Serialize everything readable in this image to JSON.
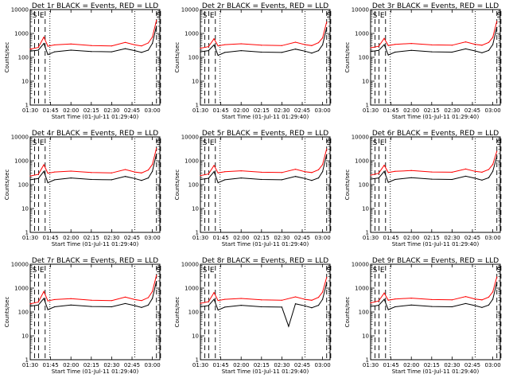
{
  "chart_data": [
    {
      "type": "line",
      "title": "Det 1r BLACK = Events, RED = LLD",
      "xlabel": "Start Time (01-Jul-11 01:29:40)",
      "ylabel": "Counts/sec",
      "yscale": "log",
      "ylim": [
        1,
        10000
      ],
      "x_ticks": [
        "01:30",
        "01:45",
        "02:00",
        "02:15",
        "02:30",
        "02:45",
        "03:00"
      ],
      "y_ticks": [
        "1",
        "10",
        "100",
        "1000",
        "10000"
      ],
      "markers": [
        {
          "label": "S",
          "dash": "dashed"
        },
        {
          "label": "E",
          "dash": "dashed"
        },
        {
          "label": "S",
          "dash": "dashed"
        }
      ],
      "series": [
        {
          "color": "#ff0000",
          "x": [
            "01:30",
            "01:36",
            "01:40",
            "01:43",
            "01:48",
            "02:00",
            "02:15",
            "02:30",
            "02:40",
            "02:47",
            "02:52",
            "02:57",
            "03:00",
            "03:03"
          ],
          "y": [
            220,
            260,
            700,
            290,
            330,
            360,
            310,
            300,
            420,
            330,
            300,
            400,
            700,
            3500
          ]
        },
        {
          "color": "#000000",
          "x": [
            "01:30",
            "01:36",
            "01:40",
            "01:43",
            "01:48",
            "02:00",
            "02:15",
            "02:30",
            "02:40",
            "02:47",
            "02:52",
            "02:57",
            "03:00",
            "03:03"
          ],
          "y": [
            180,
            200,
            380,
            130,
            170,
            200,
            175,
            170,
            230,
            190,
            160,
            200,
            380,
            2000
          ]
        }
      ]
    },
    {
      "type": "line",
      "title": "Det 2r BLACK = Events, RED = LLD",
      "xlabel": "Start Time (01-Jul-11 01:29:40)",
      "ylabel": "Counts/sec",
      "yscale": "log",
      "ylim": [
        1,
        10000
      ],
      "x_ticks": [
        "01:30",
        "01:45",
        "02:00",
        "02:15",
        "02:30",
        "02:45",
        "03:00"
      ],
      "y_ticks": [
        "1",
        "10",
        "100",
        "1000",
        "10000"
      ],
      "markers": [
        {
          "label": "S",
          "dash": "dashed"
        },
        {
          "label": "E",
          "dash": "dashed"
        },
        {
          "label": "S",
          "dash": "dashed"
        }
      ],
      "series": [
        {
          "color": "#ff0000",
          "x": [
            "01:30",
            "01:36",
            "01:40",
            "01:43",
            "01:48",
            "02:00",
            "02:15",
            "02:30",
            "02:40",
            "02:47",
            "02:52",
            "02:57",
            "03:00",
            "03:03"
          ],
          "y": [
            240,
            280,
            600,
            300,
            340,
            370,
            320,
            310,
            430,
            340,
            310,
            410,
            650,
            3000
          ]
        },
        {
          "color": "#000000",
          "x": [
            "01:30",
            "01:36",
            "01:40",
            "01:43",
            "01:48",
            "02:00",
            "02:15",
            "02:30",
            "02:40",
            "02:47",
            "02:52",
            "02:57",
            "03:00",
            "03:03"
          ],
          "y": [
            170,
            190,
            330,
            120,
            160,
            190,
            165,
            160,
            220,
            180,
            150,
            190,
            330,
            1700
          ]
        }
      ]
    },
    {
      "type": "line",
      "title": "Det 3r BLACK = Events, RED = LLD",
      "xlabel": "Start Time (01-Jul-11 01:29:40)",
      "ylabel": "Counts/sec",
      "yscale": "log",
      "ylim": [
        1,
        10000
      ],
      "x_ticks": [
        "01:30",
        "01:45",
        "02:00",
        "02:15",
        "02:30",
        "02:45",
        "03:00"
      ],
      "y_ticks": [
        "1",
        "10",
        "100",
        "1000",
        "10000"
      ],
      "markers": [
        {
          "label": "S",
          "dash": "dashed"
        },
        {
          "label": "E",
          "dash": "dashed"
        },
        {
          "label": "S",
          "dash": "dashed"
        }
      ],
      "series": [
        {
          "color": "#ff0000",
          "x": [
            "01:30",
            "01:36",
            "01:40",
            "01:43",
            "01:48",
            "02:00",
            "02:15",
            "02:30",
            "02:40",
            "02:47",
            "02:52",
            "02:57",
            "03:00",
            "03:03"
          ],
          "y": [
            250,
            290,
            620,
            310,
            350,
            380,
            330,
            320,
            440,
            350,
            320,
            420,
            680,
            3200
          ]
        },
        {
          "color": "#000000",
          "x": [
            "01:30",
            "01:36",
            "01:40",
            "01:43",
            "01:48",
            "02:00",
            "02:15",
            "02:30",
            "02:40",
            "02:47",
            "02:52",
            "02:57",
            "03:00",
            "03:03"
          ],
          "y": [
            175,
            195,
            340,
            125,
            165,
            195,
            170,
            165,
            225,
            185,
            155,
            195,
            340,
            1800
          ]
        }
      ]
    },
    {
      "type": "line",
      "title": "Det 4r BLACK = Events, RED = LLD",
      "xlabel": "Start Time (01-Jul-11 01:29:40)",
      "ylabel": "Counts/sec",
      "yscale": "log",
      "ylim": [
        1,
        10000
      ],
      "x_ticks": [
        "01:30",
        "01:45",
        "02:00",
        "02:15",
        "02:30",
        "02:45",
        "03:00"
      ],
      "y_ticks": [
        "1",
        "10",
        "100",
        "1000",
        "10000"
      ],
      "markers": [
        {
          "label": "S",
          "dash": "dashed"
        },
        {
          "label": "E",
          "dash": "dashed"
        },
        {
          "label": "S",
          "dash": "dashed"
        }
      ],
      "series": [
        {
          "color": "#ff0000",
          "x": [
            "01:30",
            "01:36",
            "01:40",
            "01:43",
            "01:48",
            "02:00",
            "02:15",
            "02:30",
            "02:40",
            "02:47",
            "02:52",
            "02:57",
            "03:00",
            "03:03"
          ],
          "y": [
            230,
            270,
            680,
            300,
            340,
            370,
            320,
            310,
            430,
            340,
            310,
            410,
            700,
            3300
          ]
        },
        {
          "color": "#000000",
          "x": [
            "01:30",
            "01:36",
            "01:40",
            "01:43",
            "01:48",
            "02:00",
            "02:15",
            "02:30",
            "02:40",
            "02:47",
            "02:52",
            "02:57",
            "03:00",
            "03:03"
          ],
          "y": [
            160,
            180,
            360,
            120,
            160,
            190,
            165,
            160,
            220,
            180,
            150,
            190,
            360,
            1900
          ]
        }
      ]
    },
    {
      "type": "line",
      "title": "Det 5r BLACK = Events, RED = LLD",
      "xlabel": "Start Time (01-Jul-11 01:29:40)",
      "ylabel": "Counts/sec",
      "yscale": "log",
      "ylim": [
        1,
        10000
      ],
      "x_ticks": [
        "01:30",
        "01:45",
        "02:00",
        "02:15",
        "02:30",
        "02:45",
        "03:00"
      ],
      "y_ticks": [
        "1",
        "10",
        "100",
        "1000",
        "10000"
      ],
      "markers": [
        {
          "label": "S",
          "dash": "dashed"
        },
        {
          "label": "E",
          "dash": "dashed"
        },
        {
          "label": "S",
          "dash": "dashed"
        }
      ],
      "series": [
        {
          "color": "#ff0000",
          "x": [
            "01:30",
            "01:36",
            "01:40",
            "01:43",
            "01:48",
            "02:00",
            "02:15",
            "02:30",
            "02:40",
            "02:47",
            "02:52",
            "02:57",
            "03:00",
            "03:03"
          ],
          "y": [
            240,
            280,
            640,
            310,
            350,
            380,
            330,
            320,
            440,
            350,
            320,
            420,
            690,
            3100
          ]
        },
        {
          "color": "#000000",
          "x": [
            "01:30",
            "01:36",
            "01:40",
            "01:43",
            "01:48",
            "02:00",
            "02:15",
            "02:30",
            "02:40",
            "02:47",
            "02:52",
            "02:57",
            "03:00",
            "03:03"
          ],
          "y": [
            165,
            185,
            350,
            120,
            160,
            190,
            165,
            160,
            220,
            180,
            150,
            190,
            350,
            1800
          ]
        }
      ]
    },
    {
      "type": "line",
      "title": "Det 6r BLACK = Events, RED = LLD",
      "xlabel": "Start Time (01-Jul-11 01:29:40)",
      "ylabel": "Counts/sec",
      "yscale": "log",
      "ylim": [
        1,
        10000
      ],
      "x_ticks": [
        "01:30",
        "01:45",
        "02:00",
        "02:15",
        "02:30",
        "02:45",
        "03:00"
      ],
      "y_ticks": [
        "1",
        "10",
        "100",
        "1000",
        "10000"
      ],
      "markers": [
        {
          "label": "S",
          "dash": "dashed"
        },
        {
          "label": "E",
          "dash": "dashed"
        },
        {
          "label": "S",
          "dash": "dashed"
        }
      ],
      "series": [
        {
          "color": "#ff0000",
          "x": [
            "01:30",
            "01:36",
            "01:40",
            "01:43",
            "01:48",
            "02:00",
            "02:15",
            "02:30",
            "02:40",
            "02:47",
            "02:52",
            "02:57",
            "03:00",
            "03:03"
          ],
          "y": [
            250,
            300,
            650,
            320,
            360,
            390,
            340,
            330,
            450,
            360,
            330,
            430,
            700,
            2500
          ]
        },
        {
          "color": "#000000",
          "x": [
            "01:30",
            "01:36",
            "01:40",
            "01:43",
            "01:48",
            "02:00",
            "02:15",
            "02:30",
            "02:40",
            "02:47",
            "02:52",
            "02:57",
            "03:00",
            "03:03"
          ],
          "y": [
            170,
            190,
            360,
            125,
            165,
            195,
            170,
            165,
            225,
            185,
            155,
            195,
            360,
            1500
          ]
        }
      ]
    },
    {
      "type": "line",
      "title": "Det 7r BLACK = Events, RED = LLD",
      "xlabel": "Start Time (01-Jul-11 01:29:40)",
      "ylabel": "Counts/sec",
      "yscale": "log",
      "ylim": [
        1,
        10000
      ],
      "x_ticks": [
        "01:30",
        "01:45",
        "02:00",
        "02:15",
        "02:30",
        "02:45",
        "03:00"
      ],
      "y_ticks": [
        "1",
        "10",
        "100",
        "1000",
        "10000"
      ],
      "markers": [
        {
          "label": "S",
          "dash": "dashed"
        },
        {
          "label": "E",
          "dash": "dashed"
        },
        {
          "label": "S",
          "dash": "dashed"
        }
      ],
      "series": [
        {
          "color": "#ff0000",
          "x": [
            "01:30",
            "01:36",
            "01:40",
            "01:43",
            "01:48",
            "02:00",
            "02:15",
            "02:30",
            "02:40",
            "02:47",
            "02:52",
            "02:57",
            "03:00",
            "03:03"
          ],
          "y": [
            220,
            260,
            720,
            290,
            330,
            360,
            310,
            300,
            420,
            330,
            300,
            400,
            720,
            3400
          ]
        },
        {
          "color": "#000000",
          "x": [
            "01:30",
            "01:36",
            "01:40",
            "01:43",
            "01:48",
            "02:00",
            "02:15",
            "02:30",
            "02:40",
            "02:47",
            "02:52",
            "02:57",
            "03:00",
            "03:03"
          ],
          "y": [
            175,
            195,
            370,
            125,
            165,
            195,
            170,
            165,
            225,
            185,
            155,
            195,
            370,
            1900
          ]
        }
      ]
    },
    {
      "type": "line",
      "title": "Det 8r BLACK = Events, RED = LLD",
      "xlabel": "Start Time (01-Jul-11 01:29:40)",
      "ylabel": "Counts/sec",
      "yscale": "log",
      "ylim": [
        1,
        10000
      ],
      "x_ticks": [
        "01:30",
        "01:45",
        "02:00",
        "02:15",
        "02:30",
        "02:45",
        "03:00"
      ],
      "y_ticks": [
        "1",
        "10",
        "100",
        "1000",
        "10000"
      ],
      "markers": [
        {
          "label": "S",
          "dash": "dashed"
        },
        {
          "label": "E",
          "dash": "dashed"
        },
        {
          "label": "S",
          "dash": "dashed"
        }
      ],
      "series": [
        {
          "color": "#ff0000",
          "x": [
            "01:30",
            "01:36",
            "01:40",
            "01:43",
            "01:48",
            "02:00",
            "02:15",
            "02:30",
            "02:40",
            "02:47",
            "02:52",
            "02:57",
            "03:00",
            "03:03"
          ],
          "y": [
            230,
            270,
            650,
            300,
            340,
            370,
            320,
            310,
            430,
            340,
            310,
            410,
            680,
            2800
          ]
        },
        {
          "color": "#000000",
          "x": [
            "01:30",
            "01:36",
            "01:40",
            "01:43",
            "01:48",
            "02:00",
            "02:15",
            "02:30",
            "02:35",
            "02:40",
            "02:47",
            "02:52",
            "02:57",
            "03:00",
            "03:03"
          ],
          "y": [
            165,
            185,
            340,
            120,
            160,
            190,
            165,
            160,
            25,
            220,
            180,
            150,
            190,
            340,
            1600
          ]
        }
      ]
    },
    {
      "type": "line",
      "title": "Det 9r BLACK = Events, RED = LLD",
      "xlabel": "Start Time (01-Jul-11 01:29:40)",
      "ylabel": "Counts/sec",
      "yscale": "log",
      "ylim": [
        1,
        10000
      ],
      "x_ticks": [
        "01:30",
        "01:45",
        "02:00",
        "02:15",
        "02:30",
        "02:45",
        "03:00"
      ],
      "y_ticks": [
        "1",
        "10",
        "100",
        "1000",
        "10000"
      ],
      "markers": [
        {
          "label": "S",
          "dash": "dashed"
        },
        {
          "label": "E",
          "dash": "dashed"
        },
        {
          "label": "S",
          "dash": "dashed"
        }
      ],
      "series": [
        {
          "color": "#ff0000",
          "x": [
            "01:30",
            "01:36",
            "01:40",
            "01:43",
            "01:48",
            "02:00",
            "02:15",
            "02:30",
            "02:40",
            "02:47",
            "02:52",
            "02:57",
            "03:00",
            "03:03"
          ],
          "y": [
            240,
            290,
            620,
            310,
            350,
            380,
            330,
            320,
            440,
            350,
            320,
            420,
            690,
            2900
          ]
        },
        {
          "color": "#000000",
          "x": [
            "01:30",
            "01:36",
            "01:40",
            "01:43",
            "01:48",
            "02:00",
            "02:15",
            "02:30",
            "02:40",
            "02:47",
            "02:52",
            "02:57",
            "03:00",
            "03:03"
          ],
          "y": [
            170,
            190,
            340,
            125,
            165,
            195,
            170,
            165,
            225,
            185,
            155,
            195,
            340,
            1700
          ]
        }
      ]
    }
  ]
}
